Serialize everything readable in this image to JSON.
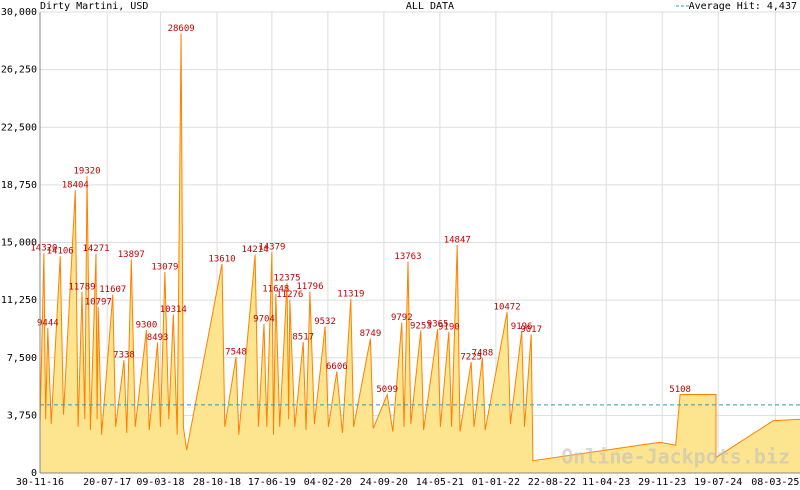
{
  "chart_data": {
    "type": "area",
    "title": "Dirty Martini, USD",
    "subtitle": "ALL DATA",
    "watermark": "Online-Jackpots.biz",
    "average": {
      "value": 4437,
      "label": "Average Hit: 4,437"
    },
    "color": "#ff8000",
    "fill": "#fde58f",
    "label_color": "#c00000",
    "grid": true,
    "x": [
      0,
      0.07,
      0.1,
      0.14,
      0.2,
      0.36,
      0.42,
      0.63,
      0.68,
      0.75,
      0.8,
      0.84,
      0.9,
      1.0,
      1.02,
      1.04,
      1.1,
      1.3,
      1.35,
      1.5,
      1.55,
      1.63,
      1.7,
      1.9,
      1.95,
      2.1,
      2.15,
      2.23,
      2.3,
      2.38,
      2.45,
      2.52,
      2.56,
      2.62,
      3.25,
      3.3,
      3.5,
      3.55,
      3.84,
      3.9,
      4.0,
      4.05,
      4.14,
      4.17,
      4.21,
      4.28,
      4.41,
      4.44,
      4.46,
      4.55,
      4.7,
      4.75,
      4.82,
      4.9,
      5.09,
      5.15,
      5.3,
      5.4,
      5.55,
      5.6,
      5.9,
      5.95,
      6.2,
      6.3,
      6.46,
      6.5,
      6.57,
      6.62,
      6.8,
      6.85,
      7.1,
      7.15,
      7.3,
      7.35,
      7.45,
      7.5,
      7.7,
      7.75,
      7.9,
      7.95,
      8.34,
      8.4,
      8.6,
      8.65,
      8.77,
      8.8,
      11.07,
      11.35,
      11.43,
      12.07,
      12.07,
      13.09,
      13.57
    ],
    "values": [
      3000,
      14320,
      3500,
      9444,
      3200,
      14106,
      3800,
      18404,
      3000,
      11789,
      3500,
      19320,
      2800,
      14271,
      3500,
      10797,
      2500,
      11607,
      3000,
      7338,
      2600,
      13897,
      3000,
      9300,
      2800,
      8493,
      3000,
      13079,
      3500,
      10314,
      2500,
      28609,
      3000,
      1500,
      13610,
      3000,
      7548,
      2500,
      14214,
      3000,
      9704,
      3000,
      14379,
      2500,
      11648,
      3000,
      12375,
      3500,
      11276,
      3000,
      8517,
      2800,
      11796,
      3200,
      9532,
      3000,
      6606,
      2600,
      11319,
      3000,
      8749,
      2900,
      5099,
      2700,
      9792,
      3000,
      13763,
      3200,
      9253,
      2800,
      9365,
      3000,
      9190,
      3000,
      14847,
      2700,
      7225,
      3000,
      7488,
      2800,
      10472,
      3200,
      9196,
      3000,
      9017,
      800,
      2000,
      1800,
      5108,
      5108,
      1000,
      3400,
      3500
    ],
    "xlim": [
      0,
      13.57
    ],
    "ylim": [
      0,
      30000
    ],
    "xticks": [
      {
        "value": 0,
        "label": "30-11-16"
      },
      {
        "value": 1.2,
        "label": "20-07-17"
      },
      {
        "value": 2.15,
        "label": "09-03-18"
      },
      {
        "value": 3.16,
        "label": "28-10-18"
      },
      {
        "value": 4.14,
        "label": "17-06-19"
      },
      {
        "value": 5.14,
        "label": "04-02-20"
      },
      {
        "value": 6.14,
        "label": "24-09-20"
      },
      {
        "value": 7.14,
        "label": "14-05-21"
      },
      {
        "value": 8.14,
        "label": "01-01-22"
      },
      {
        "value": 9.14,
        "label": "22-08-22"
      },
      {
        "value": 10.11,
        "label": "11-04-23"
      },
      {
        "value": 11.11,
        "label": "29-11-23"
      },
      {
        "value": 12.11,
        "label": "19-07-24"
      },
      {
        "value": 13.13,
        "label": "08-03-25"
      }
    ],
    "yticks": [
      0,
      {
        "value": 3750,
        "label": "3,750"
      },
      {
        "value": 7500,
        "label": "7,500"
      },
      {
        "value": 11250,
        "label": "11,250"
      },
      {
        "value": 15000,
        "label": "15,000"
      },
      {
        "value": 18750,
        "label": "18,750"
      },
      {
        "value": 22500,
        "label": "22,500"
      },
      {
        "value": 26250,
        "label": "26,250"
      },
      {
        "value": 30000,
        "label": "30,000"
      }
    ]
  }
}
